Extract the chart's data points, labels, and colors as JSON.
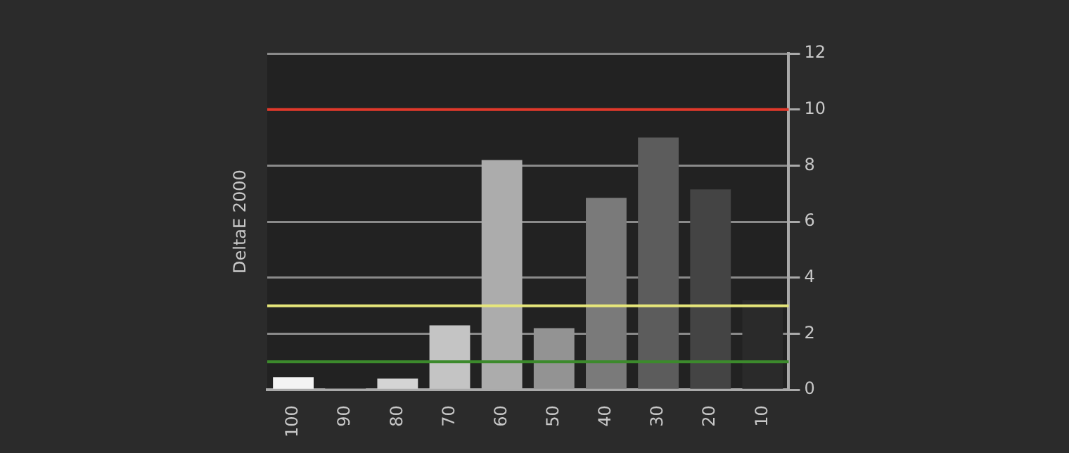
{
  "chart_data": {
    "type": "bar",
    "ylabel": "DeltaE 2000",
    "categories": [
      "100",
      "90",
      "80",
      "70",
      "60",
      "50",
      "40",
      "30",
      "20",
      "10"
    ],
    "values": [
      0.45,
      0.05,
      0.4,
      2.3,
      8.2,
      2.2,
      6.85,
      9.0,
      7.15,
      3.2
    ],
    "colors": [
      "#f4f4f4",
      "#303030",
      "#d4d4d4",
      "#c4c4c4",
      "#acacac",
      "#939393",
      "#7a7a7a",
      "#5c5c5c",
      "#444444",
      "#2a2a2a"
    ],
    "ylim": [
      0,
      12
    ],
    "yticks": [
      0,
      2,
      4,
      6,
      8,
      10,
      12
    ],
    "grid": "y",
    "ref_lines": [
      {
        "axis": "y",
        "value": 10,
        "color": "#e0392b"
      },
      {
        "axis": "y",
        "value": 3,
        "color": "#e6e67a"
      },
      {
        "axis": "y",
        "value": 1,
        "color": "#3c8a2c"
      }
    ]
  }
}
